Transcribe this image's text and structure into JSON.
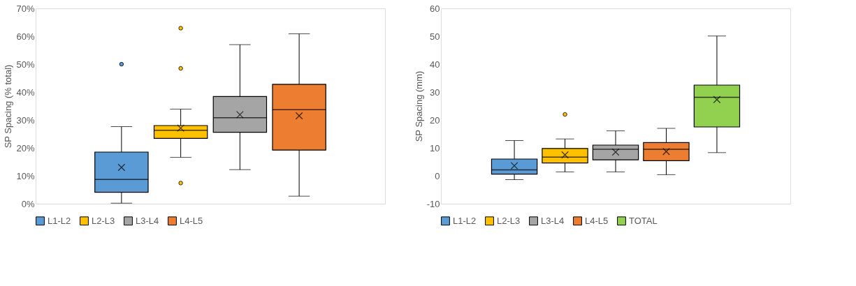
{
  "chart_data": [
    {
      "type": "box",
      "ylabel": "SP Spacing (% total)",
      "categories": [
        null
      ],
      "ylim": [
        0,
        70
      ],
      "yticks": [
        {
          "value": 0,
          "label": "0%"
        },
        {
          "value": 10,
          "label": "10%"
        },
        {
          "value": 20,
          "label": "20%"
        },
        {
          "value": 30,
          "label": "30%"
        },
        {
          "value": 40,
          "label": "40%"
        },
        {
          "value": 50,
          "label": "50%"
        },
        {
          "value": 60,
          "label": "60%"
        },
        {
          "value": 70,
          "label": "70%"
        }
      ],
      "grid": false,
      "legend": "bottom",
      "series": [
        {
          "name": "L1-L2",
          "color": "#5b9bd5",
          "boxes": [
            {
              "low": 0.2,
              "q1": 4.1,
              "median": 8.7,
              "q3": 18.5,
              "high": 27.6,
              "mean": 13.0,
              "outliers": [
                50
              ]
            }
          ]
        },
        {
          "name": "L2-L3",
          "color": "#ffc000",
          "boxes": [
            {
              "low": 16.6,
              "q1": 23.4,
              "median": 26.3,
              "q3": 28.0,
              "high": 33.9,
              "mean": 27.1,
              "outliers": [
                62.9,
                48.5,
                7.4
              ]
            }
          ]
        },
        {
          "name": "L3-L4",
          "color": "#a5a5a5",
          "boxes": [
            {
              "low": 12.2,
              "q1": 25.6,
              "median": 30.8,
              "q3": 38.4,
              "high": 57.0,
              "mean": 31.9
            }
          ]
        },
        {
          "name": "L4-L5",
          "color": "#ed7d31",
          "boxes": [
            {
              "low": 2.7,
              "q1": 19.2,
              "median": 33.7,
              "q3": 42.8,
              "high": 60.9,
              "mean": 31.5
            }
          ]
        }
      ]
    },
    {
      "type": "box",
      "ylabel": "SP Spacing (mm)",
      "categories": [
        null
      ],
      "ylim": [
        -10,
        60
      ],
      "yticks": [
        -10,
        0,
        10,
        20,
        30,
        40,
        50,
        60
      ],
      "grid": false,
      "legend": "bottom",
      "series": [
        {
          "name": "L1-L2",
          "color": "#5b9bd5",
          "boxes": [
            {
              "low": -1.4,
              "q1": 0.6,
              "median": 2.1,
              "q3": 6.0,
              "high": 12.6,
              "mean": 3.6
            }
          ]
        },
        {
          "name": "L2-L3",
          "color": "#ffc000",
          "boxes": [
            {
              "low": 1.4,
              "q1": 4.6,
              "median": 6.7,
              "q3": 9.8,
              "high": 13.2,
              "mean": 7.5,
              "outliers": [
                22.0
              ]
            }
          ]
        },
        {
          "name": "L3-L4",
          "color": "#a5a5a5",
          "boxes": [
            {
              "low": 1.4,
              "q1": 5.7,
              "median": 9.5,
              "q3": 11.0,
              "high": 16.1,
              "mean": 8.5
            }
          ]
        },
        {
          "name": "L4-L5",
          "color": "#ed7d31",
          "boxes": [
            {
              "low": 0.4,
              "q1": 5.4,
              "median": 9.5,
              "q3": 11.9,
              "high": 17.0,
              "mean": 8.7
            }
          ]
        },
        {
          "name": "TOTAL",
          "color": "#92d050",
          "boxes": [
            {
              "low": 8.3,
              "q1": 17.5,
              "median": 28.1,
              "q3": 32.5,
              "high": 50.1,
              "mean": 27.3
            }
          ]
        }
      ]
    }
  ]
}
